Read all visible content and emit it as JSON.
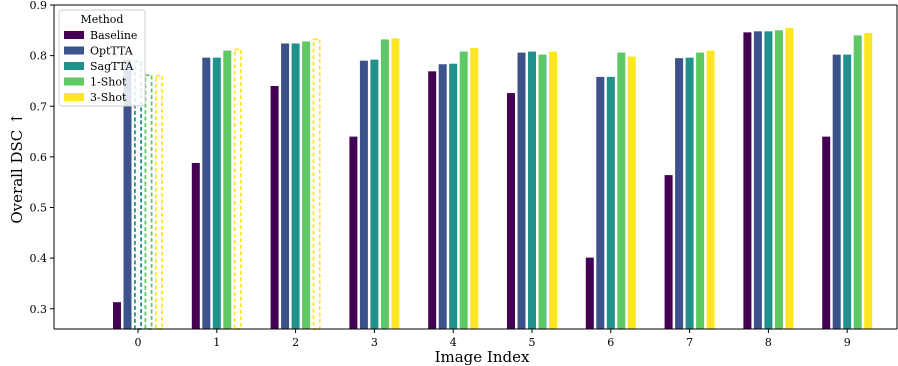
{
  "chart_data": {
    "type": "bar",
    "xlabel": "Image Index",
    "ylabel": "Overall DSC ↑",
    "ylim": [
      0.26,
      0.9
    ],
    "yticks": [
      0.3,
      0.4,
      0.5,
      0.6,
      0.7,
      0.8,
      0.9
    ],
    "categories": [
      "0",
      "1",
      "2",
      "3",
      "4",
      "5",
      "6",
      "7",
      "8",
      "9"
    ],
    "legend": {
      "title": "Method",
      "placement": "top-left"
    },
    "series": [
      {
        "name": "Baseline",
        "color": "#440154",
        "values": [
          0.313,
          0.588,
          0.74,
          0.64,
          0.769,
          0.726,
          0.401,
          0.564,
          0.846,
          0.64
        ],
        "dashed": [
          false,
          false,
          false,
          false,
          false,
          false,
          false,
          false,
          false,
          false
        ]
      },
      {
        "name": "OptTTA",
        "color": "#3b528b",
        "values": [
          0.792,
          0.796,
          0.824,
          0.79,
          0.783,
          0.806,
          0.758,
          0.795,
          0.848,
          0.802
        ],
        "dashed": [
          false,
          false,
          false,
          false,
          false,
          false,
          false,
          false,
          false,
          false
        ]
      },
      {
        "name": "SagTTA",
        "color": "#21918c",
        "values": [
          0.79,
          0.796,
          0.824,
          0.792,
          0.784,
          0.808,
          0.758,
          0.796,
          0.848,
          0.802
        ],
        "dashed": [
          true,
          false,
          false,
          false,
          false,
          false,
          false,
          false,
          false,
          false
        ]
      },
      {
        "name": "1-Shot",
        "color": "#5ec962",
        "values": [
          0.763,
          0.81,
          0.828,
          0.832,
          0.808,
          0.802,
          0.806,
          0.806,
          0.85,
          0.84
        ],
        "dashed": [
          true,
          false,
          false,
          false,
          false,
          false,
          false,
          false,
          false,
          false
        ]
      },
      {
        "name": "3-Shot",
        "color": "#fde725",
        "values": [
          0.762,
          0.814,
          0.834,
          0.834,
          0.815,
          0.808,
          0.798,
          0.81,
          0.855,
          0.845
        ],
        "dashed": [
          true,
          true,
          true,
          false,
          false,
          false,
          false,
          false,
          false,
          false
        ]
      }
    ]
  }
}
